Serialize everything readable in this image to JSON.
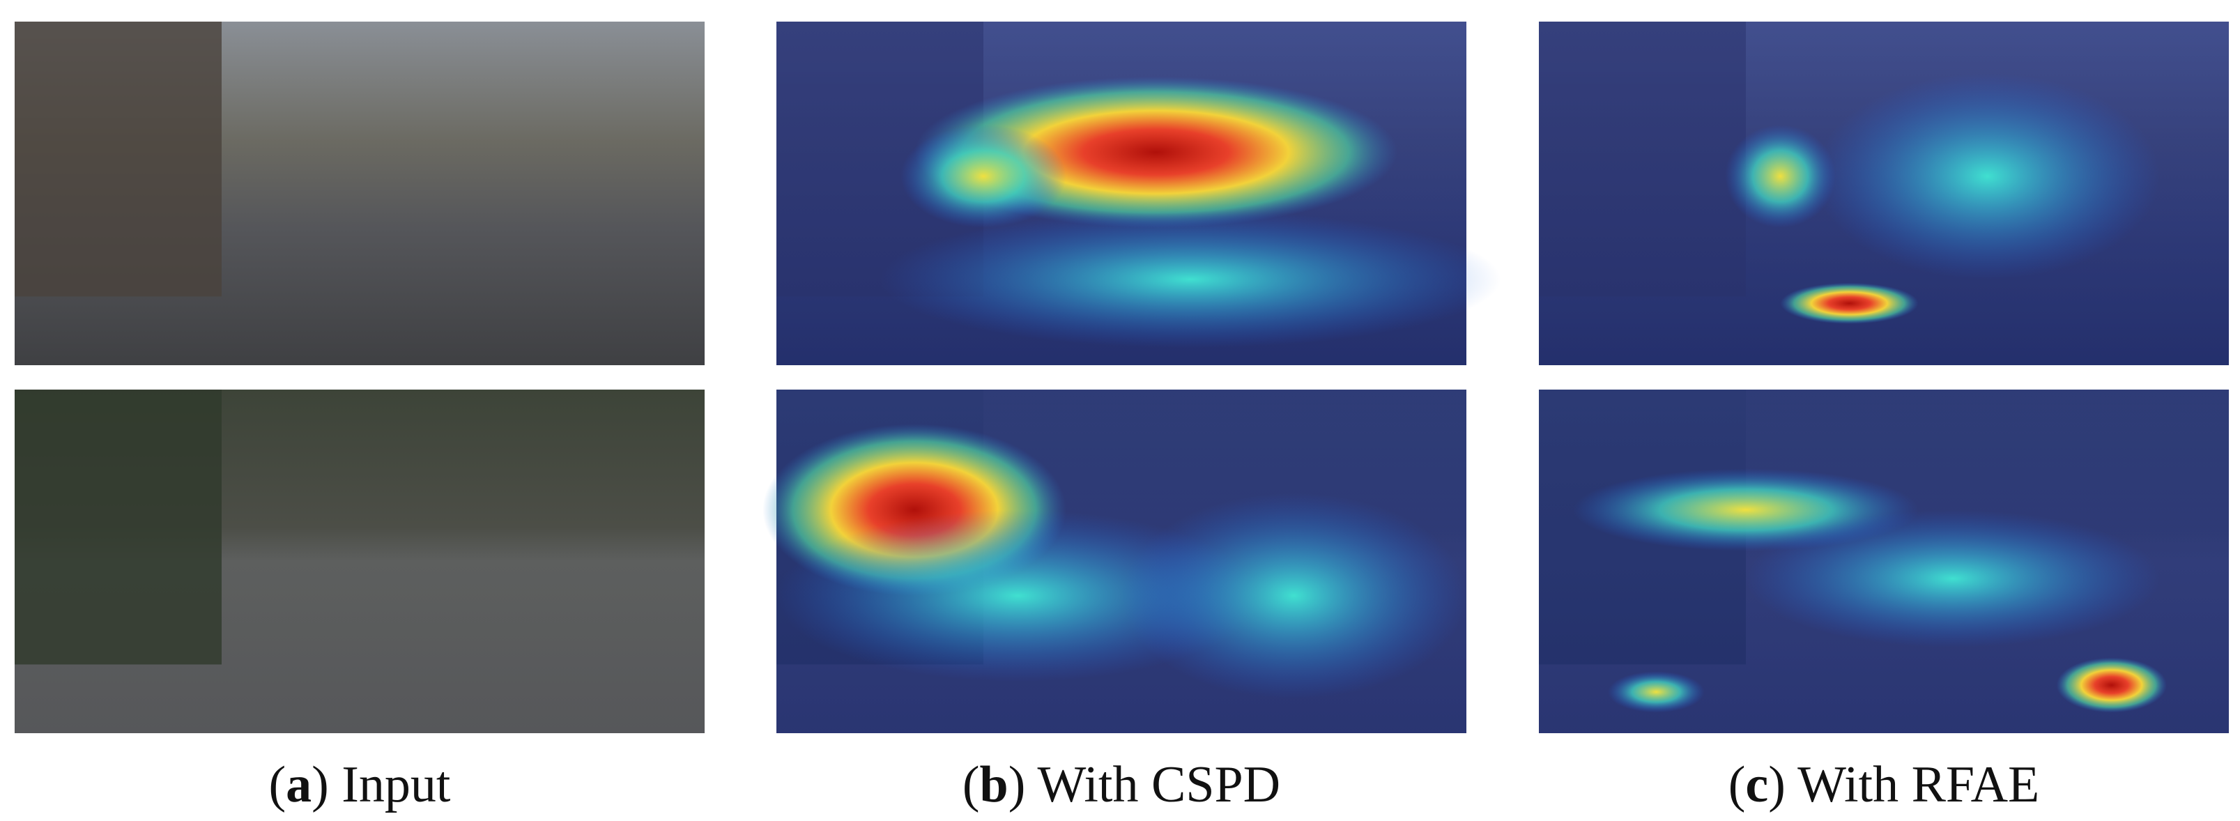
{
  "figure": {
    "panels": [
      {
        "caption_parts": [
          "(",
          "a",
          ") Input"
        ]
      },
      {
        "caption_parts": [
          "(",
          "b",
          ") With CSPD"
        ]
      },
      {
        "caption_parts": [
          "(",
          "c",
          ") With RFAE"
        ]
      }
    ]
  }
}
